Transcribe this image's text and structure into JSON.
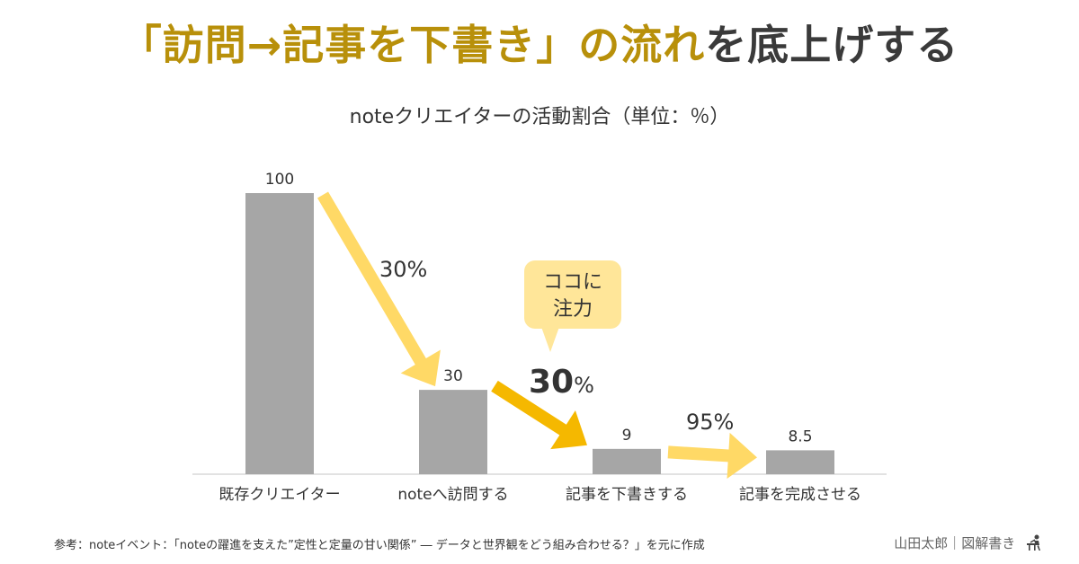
{
  "title": {
    "highlight": "「訪問→記事を下書き」の流れ",
    "rest": "を底上げする"
  },
  "footer": {
    "reference": "参考：noteイベント：「noteの躍進を支えた”定性と定量の甘い関係” ― データと世界観をどう組み合わせる？」を元に作成",
    "credit": "山田太郎｜図解書き"
  },
  "chart_data": {
    "type": "bar",
    "title": "noteクリエイターの活動割合（単位：％）",
    "categories": [
      "既存クリエイター",
      "noteへ訪問する",
      "記事を下書きする",
      "記事を完成させる"
    ],
    "values": [
      100,
      30,
      9,
      8.5
    ],
    "value_labels": [
      "100",
      "30",
      "9",
      "8.5"
    ],
    "ylim": [
      0,
      100
    ],
    "bar_color": "#a6a6a6",
    "conversion_rates": [
      {
        "from": 0,
        "to": 1,
        "label": "30%",
        "emphasis": false
      },
      {
        "from": 1,
        "to": 2,
        "label": "30",
        "unit": "%",
        "emphasis": true
      },
      {
        "from": 2,
        "to": 3,
        "label": "95%",
        "emphasis": false
      }
    ],
    "callout": {
      "line1": "ココに",
      "line2": "注力"
    },
    "colors": {
      "arrow_light": "#ffd966",
      "arrow_dark": "#f5b800",
      "callout_bg": "#ffe699",
      "highlight_text": "#b8900a"
    },
    "grid": false
  }
}
